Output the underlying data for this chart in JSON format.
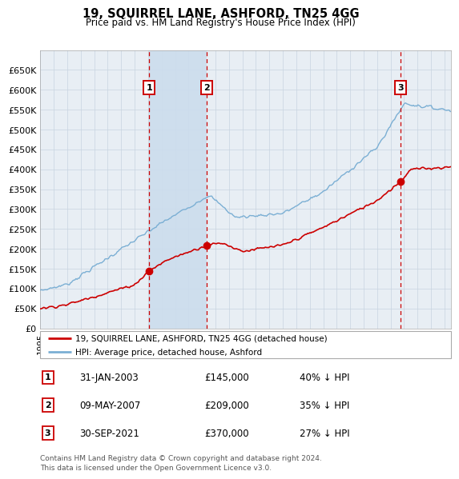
{
  "title": "19, SQUIRREL LANE, ASHFORD, TN25 4GG",
  "subtitle": "Price paid vs. HM Land Registry's House Price Index (HPI)",
  "hpi_color": "#7bafd4",
  "price_color": "#cc0000",
  "shade_color": "#ccdded",
  "bg_color": "#e8eef4",
  "plot_bg": "#f5f5f5",
  "grid_color": "#c8d4e0",
  "ylim": [
    0,
    700000
  ],
  "yticks": [
    0,
    50000,
    100000,
    150000,
    200000,
    250000,
    300000,
    350000,
    400000,
    450000,
    500000,
    550000,
    600000,
    650000
  ],
  "xlim_start": 1995.0,
  "xlim_end": 2025.5,
  "sale_dates": [
    2003.08,
    2007.36,
    2021.75
  ],
  "sale_prices": [
    145000,
    209000,
    370000
  ],
  "sale_labels": [
    "1",
    "2",
    "3"
  ],
  "legend_sale_label": "19, SQUIRREL LANE, ASHFORD, TN25 4GG (detached house)",
  "legend_hpi_label": "HPI: Average price, detached house, Ashford",
  "table_entries": [
    {
      "num": "1",
      "date": "31-JAN-2003",
      "price": "£145,000",
      "pct": "40% ↓ HPI"
    },
    {
      "num": "2",
      "date": "09-MAY-2007",
      "price": "£209,000",
      "pct": "35% ↓ HPI"
    },
    {
      "num": "3",
      "date": "30-SEP-2021",
      "price": "£370,000",
      "pct": "27% ↓ HPI"
    }
  ],
  "footer": "Contains HM Land Registry data © Crown copyright and database right 2024.\nThis data is licensed under the Open Government Licence v3.0."
}
